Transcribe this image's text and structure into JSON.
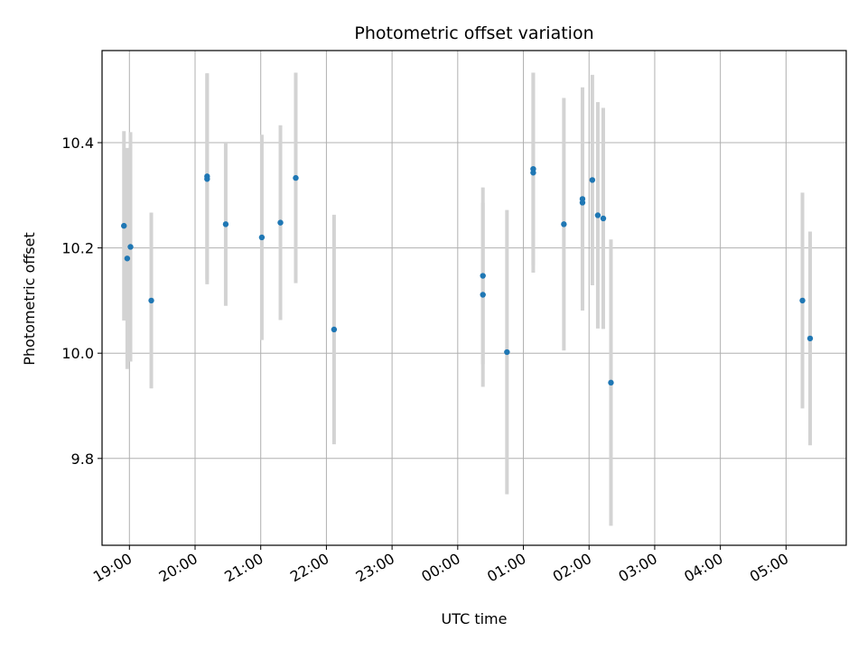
{
  "chart_data": {
    "type": "scatter",
    "title": "Photometric offset variation",
    "xlabel": "UTC time",
    "ylabel": "Photometric offset",
    "x_unit": "UTC time, session starting on evening (hours after midnight of first day, values >= 24 fall on next day)",
    "xlim": [
      "18:35",
      "05:55"
    ],
    "ylim": [
      9.635,
      10.575
    ],
    "grid": true,
    "x_tick_labels": [
      "19:00",
      "20:00",
      "21:00",
      "22:00",
      "23:00",
      "00:00",
      "01:00",
      "02:00",
      "03:00",
      "04:00",
      "05:00"
    ],
    "y_tick_labels": [
      "9.8",
      "10.0",
      "10.2",
      "10.4"
    ],
    "y_ticks": [
      9.8,
      10.0,
      10.2,
      10.4
    ],
    "marker_color": "#1f77b4",
    "errorbar_color": "#d3d3d3",
    "points": [
      {
        "x": "18:55",
        "y": 10.242,
        "err": 0.18
      },
      {
        "x": "18:58",
        "y": 10.18,
        "err": 0.21
      },
      {
        "x": "19:01",
        "y": 10.202,
        "err": 0.218
      },
      {
        "x": "19:20",
        "y": 10.1,
        "err": 0.167
      },
      {
        "x": "20:11",
        "y": 10.336,
        "err": 0.196
      },
      {
        "x": "20:11",
        "y": 10.331,
        "err": 0.2
      },
      {
        "x": "20:28",
        "y": 10.245,
        "err": 0.155
      },
      {
        "x": "21:01",
        "y": 10.22,
        "err": 0.195
      },
      {
        "x": "21:18",
        "y": 10.248,
        "err": 0.185
      },
      {
        "x": "21:32",
        "y": 10.333,
        "err": 0.2
      },
      {
        "x": "22:07",
        "y": 10.045,
        "err": 0.218
      },
      {
        "x": "00:23",
        "y": 10.147,
        "err": 0.168
      },
      {
        "x": "00:23",
        "y": 10.111,
        "err": 0.175
      },
      {
        "x": "00:45",
        "y": 10.002,
        "err": 0.27
      },
      {
        "x": "01:09",
        "y": 10.35,
        "err": 0.183
      },
      {
        "x": "01:09",
        "y": 10.343,
        "err": 0.19
      },
      {
        "x": "01:37",
        "y": 10.245,
        "err": 0.24
      },
      {
        "x": "01:54",
        "y": 10.293,
        "err": 0.212
      },
      {
        "x": "01:54",
        "y": 10.286,
        "err": 0.19
      },
      {
        "x": "02:03",
        "y": 10.329,
        "err": 0.2
      },
      {
        "x": "02:08",
        "y": 10.262,
        "err": 0.215
      },
      {
        "x": "02:13",
        "y": 10.256,
        "err": 0.21
      },
      {
        "x": "02:20",
        "y": 9.944,
        "err": 0.272
      },
      {
        "x": "05:15",
        "y": 10.1,
        "err": 0.205
      },
      {
        "x": "05:22",
        "y": 10.028,
        "err": 0.203
      }
    ]
  }
}
